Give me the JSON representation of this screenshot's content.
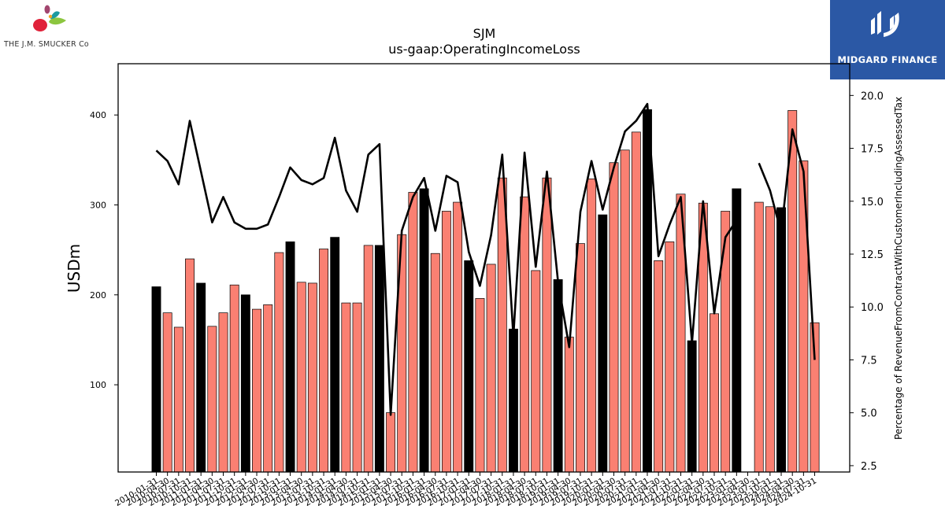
{
  "logos": {
    "left_text": "THE J.M. SMUCKER Co",
    "right_text": "MIDGARD FINANCE",
    "right_bg": "#2B58A5"
  },
  "chart_data": {
    "type": "bar",
    "title": "SJM",
    "subtitle": "us-gaap:OperatingIncomeLoss",
    "ylabel": "USDm",
    "y2label": "Percentage of RevenueFromContractWithCustomerIncludingAssessedTax",
    "ylim": [
      3,
      457
    ],
    "y2lim": [
      2.2,
      21.5
    ],
    "yticks": [
      100,
      200,
      300,
      400
    ],
    "y2ticks": [
      2.5,
      5.0,
      7.5,
      10.0,
      12.5,
      15.0,
      17.5,
      20.0
    ],
    "y2tick_labels": [
      "2.5",
      "5.0",
      "7.5",
      "10.0",
      "12.5",
      "15.0",
      "17.5",
      "20.0"
    ],
    "colors": {
      "annual": "#000000",
      "quarter": "#FA8072",
      "line": "#000000"
    },
    "grid": false,
    "categories": [
      "2010-01-31",
      "2010-04-30",
      "2010-07-31",
      "2010-10-31",
      "2011-01-31",
      "2011-04-30",
      "2011-07-31",
      "2011-10-31",
      "2012-01-31",
      "2012-04-30",
      "2012-07-31",
      "2012-10-31",
      "2013-01-31",
      "2013-04-30",
      "2013-07-31",
      "2013-10-31",
      "2014-01-31",
      "2014-04-30",
      "2014-07-31",
      "2014-10-31",
      "2015-01-31",
      "2015-04-30",
      "2015-07-31",
      "2015-10-31",
      "2016-01-31",
      "2016-04-30",
      "2016-07-31",
      "2016-10-31",
      "2017-01-31",
      "2017-04-30",
      "2017-07-31",
      "2017-10-31",
      "2018-01-31",
      "2018-04-30",
      "2018-07-31",
      "2018-10-31",
      "2019-01-31",
      "2019-04-30",
      "2019-07-31",
      "2019-10-31",
      "2020-01-31",
      "2020-04-30",
      "2020-07-31",
      "2020-10-31",
      "2021-01-31",
      "2021-04-30",
      "2021-07-31",
      "2021-10-31",
      "2022-01-31",
      "2022-04-30",
      "2022-07-31",
      "2022-10-31",
      "2023-01-31",
      "2023-04-30",
      "2023-07-31",
      "2023-10-31",
      "2024-01-31",
      "2024-04-30",
      "2024-07-31",
      "2024-10-31"
    ],
    "tick_labels": [
      "2010-01-31",
      "2010-04-30",
      "2010-07-31",
      "2010-10-31",
      "2011-01-31",
      "2011-04-30",
      "2011-07-31",
      "2011-10-31",
      "2012-01-31",
      "2012-04-30",
      "2012-07-31",
      "2012-10-31",
      "2013-01-31",
      "2013-04-30",
      "2013-07-31",
      "2013-10-31",
      "2014-01-31",
      "2014-04-30",
      "2014-07-31",
      "2014-10-31",
      "2015-01-31",
      "2015-04-30",
      "2015-07-31",
      "2015-10-31",
      "2016-01-31",
      "2016-04-30",
      "2016-07-31",
      "2016-10-31",
      "2017-01-31",
      "2017-04-30",
      "2017-07-31",
      "2017-10-31",
      "2018-01-31",
      "2018-04-30",
      "2018-07-31",
      "2018-10-31",
      "2019-01-31",
      "2019-04-30",
      "2019-07-31",
      "2019-10-31",
      "2020-01-31",
      "2020-04-30",
      "2020-07-31",
      "2020-10-31",
      "2021-01-31",
      "2021-04-30",
      "2021-07-31",
      "2021-10-31",
      "2022-01-31",
      "2022-04-30",
      "2022-07-31",
      "2022-10-31",
      "2023-01-31",
      "2023-04-30",
      "2023-07-31",
      "2023-10-31",
      "2024-01-31",
      "2024-04-30",
      "2024-07-31",
      "2024-10-31"
    ],
    "bars": [
      {
        "v": 209,
        "annual": true
      },
      {
        "v": 180,
        "annual": false
      },
      {
        "v": 164,
        "annual": false
      },
      {
        "v": 240,
        "annual": false
      },
      {
        "v": 213,
        "annual": true
      },
      {
        "v": 165,
        "annual": false
      },
      {
        "v": 180,
        "annual": false
      },
      {
        "v": 211,
        "annual": false
      },
      {
        "v": 200,
        "annual": true
      },
      {
        "v": 184,
        "annual": false
      },
      {
        "v": 189,
        "annual": false
      },
      {
        "v": 247,
        "annual": false
      },
      {
        "v": 259,
        "annual": true
      },
      {
        "v": 214,
        "annual": false
      },
      {
        "v": 213,
        "annual": false
      },
      {
        "v": 251,
        "annual": false
      },
      {
        "v": 264,
        "annual": true
      },
      {
        "v": 191,
        "annual": false
      },
      {
        "v": 191,
        "annual": false
      },
      {
        "v": 255,
        "annual": false
      },
      {
        "v": 255,
        "annual": true
      },
      {
        "v": 69,
        "annual": false
      },
      {
        "v": 267,
        "annual": false
      },
      {
        "v": 314,
        "annual": false
      },
      {
        "v": 318,
        "annual": true
      },
      {
        "v": 246,
        "annual": false
      },
      {
        "v": 293,
        "annual": false
      },
      {
        "v": 303,
        "annual": false
      },
      {
        "v": 238,
        "annual": true
      },
      {
        "v": 196,
        "annual": false
      },
      {
        "v": 234,
        "annual": false
      },
      {
        "v": 330,
        "annual": false
      },
      {
        "v": 162,
        "annual": true
      },
      {
        "v": 309,
        "annual": false
      },
      {
        "v": 227,
        "annual": false
      },
      {
        "v": 330,
        "annual": false
      },
      {
        "v": 217,
        "annual": true
      },
      {
        "v": 153,
        "annual": false
      },
      {
        "v": 257,
        "annual": false
      },
      {
        "v": 329,
        "annual": false
      },
      {
        "v": 289,
        "annual": true
      },
      {
        "v": 347,
        "annual": false
      },
      {
        "v": 361,
        "annual": false
      },
      {
        "v": 381,
        "annual": false
      },
      {
        "v": 406,
        "annual": true
      },
      {
        "v": 238,
        "annual": false
      },
      {
        "v": 259,
        "annual": false
      },
      {
        "v": 312,
        "annual": false
      },
      {
        "v": 149,
        "annual": true
      },
      {
        "v": 302,
        "annual": false
      },
      {
        "v": 179,
        "annual": false
      },
      {
        "v": 293,
        "annual": false
      },
      {
        "v": 318,
        "annual": true
      },
      {
        "v": null,
        "annual": false
      },
      {
        "v": 303,
        "annual": false
      },
      {
        "v": 298,
        "annual": false
      },
      {
        "v": 297,
        "annual": true
      },
      {
        "v": 405,
        "annual": false
      },
      {
        "v": 349,
        "annual": false
      },
      {
        "v": 169,
        "annual": false
      }
    ],
    "line": [
      17.4,
      16.9,
      15.8,
      18.8,
      16.4,
      14.0,
      15.2,
      14.0,
      13.7,
      13.7,
      13.9,
      15.2,
      16.6,
      16.0,
      15.8,
      16.1,
      18.0,
      15.5,
      14.5,
      17.2,
      17.7,
      4.9,
      13.6,
      15.2,
      16.1,
      13.6,
      16.2,
      15.9,
      12.6,
      11.0,
      13.4,
      17.2,
      8.6,
      17.3,
      11.9,
      16.4,
      11.2,
      8.1,
      14.5,
      16.9,
      14.6,
      16.6,
      18.3,
      18.8,
      19.6,
      12.4,
      13.9,
      15.2,
      8.3,
      15.0,
      9.7,
      13.3,
      14.1,
      null,
      16.8,
      15.5,
      13.5,
      18.4,
      16.4,
      7.5
    ]
  }
}
